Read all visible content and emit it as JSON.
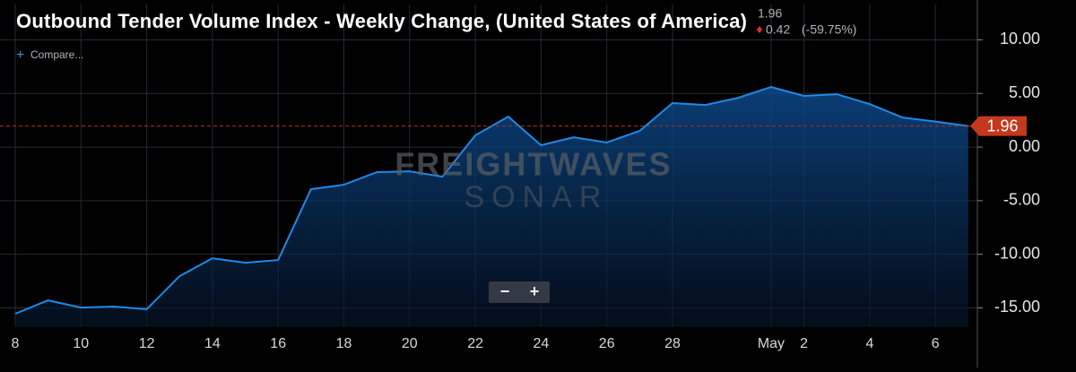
{
  "chart_data": {
    "type": "line",
    "title": "Outbound Tender Volume Index - Weekly Change, (United States of America)",
    "last_value": 1.96,
    "change": 0.42,
    "change_label": "(-59.75%)",
    "compare_label": "Compare...",
    "zoom_out": "−",
    "zoom_in": "+",
    "watermark": [
      "FREIGHTWAVES",
      "SONAR"
    ],
    "categories": [
      "8",
      null,
      "10",
      null,
      "12",
      null,
      "14",
      null,
      "16",
      null,
      "18",
      null,
      "20",
      null,
      "22",
      null,
      "24",
      null,
      "26",
      null,
      "28",
      null,
      null,
      "May",
      "2",
      null,
      "4",
      null,
      "6",
      null
    ],
    "series": [
      {
        "name": "Outbound Tender Volume Index - Weekly Change",
        "color": "#1e8ae6",
        "values": [
          -15.55,
          -14.3,
          -14.97,
          -14.88,
          -15.13,
          -12.04,
          -10.37,
          -10.79,
          -10.54,
          -3.93,
          -3.51,
          -2.34,
          -2.26,
          -2.76,
          1.09,
          2.84,
          0.17,
          0.92,
          0.42,
          1.51,
          4.1,
          3.93,
          4.6,
          5.6,
          4.77,
          4.93,
          4.01,
          2.76,
          2.38,
          1.96
        ]
      }
    ],
    "ylim": [
      -16.8,
      13.3
    ],
    "yticks": [
      {
        "value": 10,
        "label": "10.00"
      },
      {
        "value": 5,
        "label": "5.00"
      },
      {
        "value": 0,
        "label": "0.00"
      },
      {
        "value": -5,
        "label": "-5.00"
      },
      {
        "value": -10,
        "label": "-10.00"
      },
      {
        "value": -15,
        "label": "-15.00"
      }
    ],
    "grid": true
  }
}
